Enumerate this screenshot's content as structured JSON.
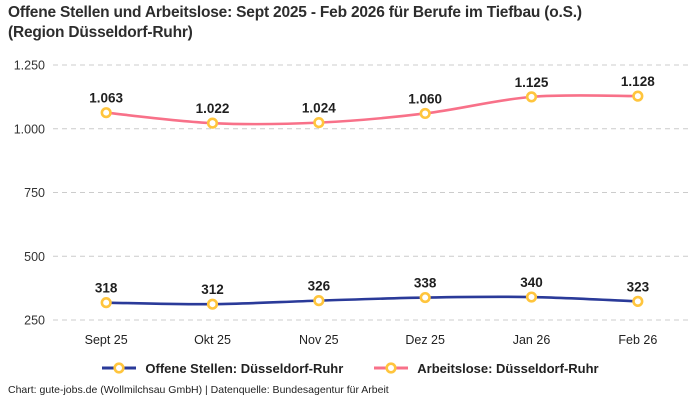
{
  "title_lines": [
    "Offene Stellen und Arbeitslose: Sept 2025 - Feb 2026 für Berufe im Tiefbau (o.S.)",
    "(Region Düsseldorf-Ruhr)"
  ],
  "chart_data": {
    "type": "line",
    "categories": [
      "Sept 25",
      "Okt 25",
      "Nov 25",
      "Dez 25",
      "Jan 26",
      "Feb 26"
    ],
    "series": [
      {
        "name": "Offene Stellen: Düsseldorf-Ruhr",
        "values": [
          318,
          312,
          326,
          338,
          340,
          323
        ],
        "labels": [
          "318",
          "312",
          "326",
          "338",
          "340",
          "323"
        ],
        "color": "#2A3A99"
      },
      {
        "name": "Arbeitslose: Düsseldorf-Ruhr",
        "values": [
          1063,
          1022,
          1024,
          1060,
          1125,
          1128
        ],
        "labels": [
          "1.063",
          "1.022",
          "1.024",
          "1.060",
          "1.125",
          "1.128"
        ],
        "color": "#F87189"
      }
    ],
    "y_ticks": [
      {
        "value": 250,
        "label": "250"
      },
      {
        "value": 500,
        "label": "500"
      },
      {
        "value": 750,
        "label": "750"
      },
      {
        "value": 1000,
        "label": "1.000"
      },
      {
        "value": 1250,
        "label": "1.250"
      }
    ],
    "ylim": [
      250,
      1250
    ],
    "grid": "dashed",
    "legend_position": "bottom",
    "marker": {
      "ring_color": "#FFC53D",
      "fill": "#ffffff"
    }
  },
  "colors": {
    "grid": "#cccccc",
    "tick_text": "#333333",
    "data_label_text": "#1f1f1f"
  },
  "footer": {
    "text": "Chart: gute-jobs.de (Wollmilchsau GmbH) | Datenquelle: Bundesagentur für Arbeit"
  }
}
